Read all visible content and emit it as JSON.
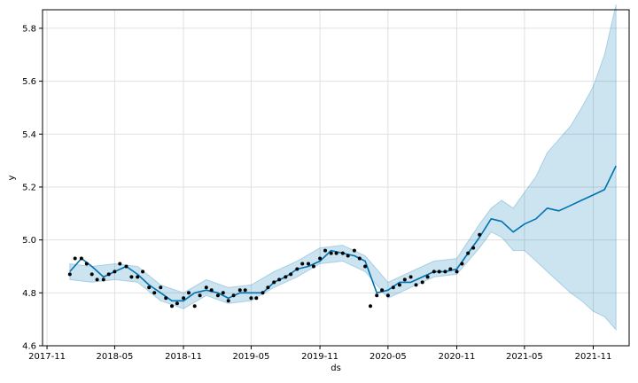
{
  "chart_data": {
    "type": "line",
    "xlabel": "ds",
    "ylabel": "y",
    "grid": true,
    "x_tick_labels": [
      "2017-11",
      "2018-05",
      "2018-11",
      "2019-05",
      "2019-11",
      "2020-05",
      "2020-11",
      "2021-05",
      "2021-11"
    ],
    "x_ticks": [
      "2017-11-01",
      "2018-05-01",
      "2018-11-01",
      "2019-05-01",
      "2019-11-01",
      "2020-05-01",
      "2020-11-01",
      "2021-05-01",
      "2021-11-01"
    ],
    "xlim": [
      "2017-10-20",
      "2022-02-05"
    ],
    "y_tick_labels": [
      "4.6",
      "4.8",
      "5.0",
      "5.2",
      "5.4",
      "5.6",
      "5.8"
    ],
    "y_ticks": [
      4.6,
      4.8,
      5.0,
      5.2,
      5.4,
      5.6,
      5.8
    ],
    "ylim": [
      4.6,
      5.87
    ],
    "colors": {
      "observed": "#000000",
      "forecast": "#0072B2",
      "interval": "#0072B2",
      "grid": "#e0e0e0"
    },
    "series": [
      {
        "role": "observed",
        "style": "points",
        "x": [
          "2018-01-01",
          "2018-01-15",
          "2018-02-01",
          "2018-02-15",
          "2018-03-01",
          "2018-03-15",
          "2018-04-01",
          "2018-04-15",
          "2018-05-01",
          "2018-05-15",
          "2018-06-01",
          "2018-06-15",
          "2018-07-01",
          "2018-07-15",
          "2018-08-01",
          "2018-08-15",
          "2018-09-01",
          "2018-09-15",
          "2018-10-01",
          "2018-10-15",
          "2018-11-01",
          "2018-11-15",
          "2018-12-01",
          "2018-12-15",
          "2019-01-01",
          "2019-01-15",
          "2019-02-01",
          "2019-02-15",
          "2019-03-01",
          "2019-03-15",
          "2019-04-01",
          "2019-04-15",
          "2019-05-01",
          "2019-05-15",
          "2019-06-01",
          "2019-06-15",
          "2019-07-01",
          "2019-07-15",
          "2019-08-01",
          "2019-08-15",
          "2019-09-01",
          "2019-09-15",
          "2019-10-01",
          "2019-10-15",
          "2019-11-01",
          "2019-11-15",
          "2019-12-01",
          "2019-12-15",
          "2020-01-01",
          "2020-01-15",
          "2020-02-01",
          "2020-02-15",
          "2020-03-01",
          "2020-03-15",
          "2020-04-01",
          "2020-04-15",
          "2020-05-01",
          "2020-05-15",
          "2020-06-01",
          "2020-06-15",
          "2020-07-01",
          "2020-07-15",
          "2020-08-01",
          "2020-08-15",
          "2020-09-01",
          "2020-09-15",
          "2020-10-01",
          "2020-10-15",
          "2020-11-01",
          "2020-11-15",
          "2020-12-01",
          "2020-12-15",
          "2021-01-01"
        ],
        "values": [
          4.87,
          4.93,
          4.93,
          4.91,
          4.87,
          4.85,
          4.85,
          4.87,
          4.88,
          4.91,
          4.9,
          4.86,
          4.86,
          4.88,
          4.82,
          4.8,
          4.82,
          4.78,
          4.75,
          4.76,
          4.78,
          4.8,
          4.75,
          4.79,
          4.82,
          4.81,
          4.79,
          4.8,
          4.77,
          4.79,
          4.81,
          4.81,
          4.78,
          4.78,
          4.8,
          4.82,
          4.84,
          4.85,
          4.86,
          4.87,
          4.89,
          4.91,
          4.91,
          4.9,
          4.93,
          4.96,
          4.95,
          4.95,
          4.95,
          4.94,
          4.96,
          4.93,
          4.9,
          4.75,
          4.79,
          4.81,
          4.79,
          4.82,
          4.83,
          4.85,
          4.86,
          4.83,
          4.84,
          4.86,
          4.88,
          4.88,
          4.88,
          4.89,
          4.88,
          4.91,
          4.95,
          4.97,
          5.02
        ]
      },
      {
        "role": "forecast",
        "style": "line",
        "x": [
          "2018-01-01",
          "2018-02-01",
          "2018-03-01",
          "2018-04-01",
          "2018-05-01",
          "2018-06-01",
          "2018-07-01",
          "2018-08-01",
          "2018-09-01",
          "2018-10-01",
          "2018-11-01",
          "2018-12-01",
          "2019-01-01",
          "2019-02-01",
          "2019-03-01",
          "2019-04-01",
          "2019-05-01",
          "2019-06-01",
          "2019-07-01",
          "2019-08-01",
          "2019-09-01",
          "2019-10-01",
          "2019-11-01",
          "2019-12-01",
          "2020-01-01",
          "2020-02-01",
          "2020-03-01",
          "2020-04-01",
          "2020-05-01",
          "2020-06-01",
          "2020-07-01",
          "2020-08-01",
          "2020-09-01",
          "2020-10-01",
          "2020-11-01",
          "2020-12-01",
          "2021-01-01",
          "2021-02-01",
          "2021-03-01",
          "2021-04-01",
          "2021-05-01",
          "2021-06-01",
          "2021-07-01",
          "2021-08-01",
          "2021-09-01",
          "2021-10-01",
          "2021-11-01",
          "2021-12-01",
          "2022-01-01"
        ],
        "values": [
          4.88,
          4.93,
          4.9,
          4.86,
          4.88,
          4.9,
          4.87,
          4.83,
          4.8,
          4.77,
          4.77,
          4.8,
          4.81,
          4.8,
          4.78,
          4.8,
          4.8,
          4.8,
          4.84,
          4.86,
          4.89,
          4.9,
          4.92,
          4.96,
          4.95,
          4.94,
          4.92,
          4.8,
          4.81,
          4.84,
          4.84,
          4.86,
          4.88,
          4.88,
          4.89,
          4.95,
          5.01,
          5.08,
          5.07,
          5.03,
          5.06,
          5.08,
          5.12,
          5.11,
          5.13,
          5.15,
          5.17,
          5.19,
          5.28
        ]
      },
      {
        "role": "interval",
        "style": "band",
        "x": [
          "2018-01-01",
          "2018-03-01",
          "2018-05-01",
          "2018-07-01",
          "2018-09-01",
          "2018-11-01",
          "2019-01-01",
          "2019-03-01",
          "2019-05-01",
          "2019-07-01",
          "2019-09-01",
          "2019-11-01",
          "2020-01-01",
          "2020-03-01",
          "2020-05-01",
          "2020-07-01",
          "2020-09-01",
          "2020-11-01",
          "2021-01-01",
          "2021-02-01",
          "2021-03-01",
          "2021-04-01",
          "2021-05-01",
          "2021-06-01",
          "2021-07-01",
          "2021-08-01",
          "2021-09-01",
          "2021-10-01",
          "2021-11-01",
          "2021-12-01",
          "2022-01-01"
        ],
        "lower": [
          4.85,
          4.84,
          4.85,
          4.84,
          4.77,
          4.74,
          4.79,
          4.76,
          4.77,
          4.82,
          4.86,
          4.91,
          4.92,
          4.88,
          4.78,
          4.82,
          4.86,
          4.87,
          4.97,
          5.03,
          5.01,
          4.96,
          4.96,
          4.92,
          4.88,
          4.84,
          4.8,
          4.77,
          4.73,
          4.71,
          4.66
        ],
        "upper": [
          4.91,
          4.9,
          4.91,
          4.9,
          4.83,
          4.8,
          4.85,
          4.82,
          4.83,
          4.88,
          4.92,
          4.97,
          4.98,
          4.94,
          4.84,
          4.88,
          4.92,
          4.93,
          5.06,
          5.12,
          5.15,
          5.12,
          5.18,
          5.24,
          5.33,
          5.38,
          5.43,
          5.5,
          5.58,
          5.7,
          5.89
        ]
      }
    ]
  }
}
